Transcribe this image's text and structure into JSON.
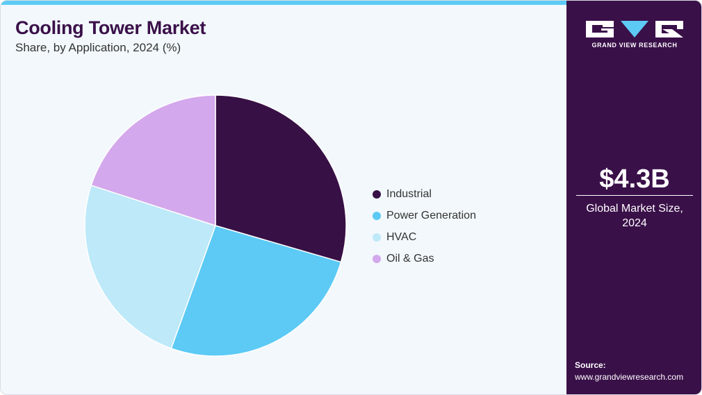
{
  "title": "Cooling Tower Market",
  "subtitle": "Share, by Application, 2024 (%)",
  "colors": {
    "background": "#f2f8fc",
    "accent": "#5ccaf5",
    "sidebar": "#3a1049"
  },
  "chart_data": {
    "type": "pie",
    "title": "Cooling Tower Market",
    "subtitle": "Share, by Application, 2024 (%)",
    "categories": [
      "Industrial",
      "Power Generation",
      "HVAC",
      "Oil & Gas"
    ],
    "values": [
      29.5,
      26.0,
      24.5,
      20.0
    ],
    "colors": [
      "#371045",
      "#5ccaf5",
      "#bde9f9",
      "#d4a8ec"
    ],
    "start_angle_deg": 0,
    "direction": "clockwise",
    "legend_position": "right"
  },
  "side_panel": {
    "logo_text": "GRAND VIEW RESEARCH",
    "market_value": "$4.3B",
    "market_desc_line1": "Global Market Size,",
    "market_desc_line2": "2024",
    "source_label": "Source:",
    "source_url": "www.grandviewresearch.com"
  }
}
